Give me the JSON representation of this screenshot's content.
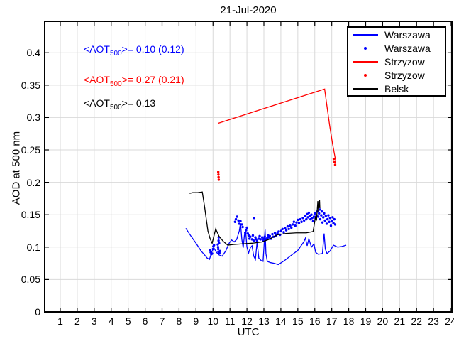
{
  "title": "21-Jul-2020",
  "axes": {
    "xlabel": "UTC",
    "ylabel": "AOD at 500 nm",
    "x_ticks": [
      "1",
      "2",
      "3",
      "4",
      "5",
      "6",
      "7",
      "8",
      "9",
      "10",
      "11",
      "12",
      "13",
      "14",
      "15",
      "16",
      "17",
      "18",
      "19",
      "20",
      "21",
      "22",
      "23",
      "24"
    ],
    "y_ticks": [
      "0",
      "0.05",
      "0.1",
      "0.15",
      "0.2",
      "0.25",
      "0.3",
      "0.35",
      "0.4"
    ]
  },
  "annotations": [
    {
      "pre": "<AOT",
      "sub": "500",
      "post": ">= 0.10 (0.12)",
      "color": "#0000ff"
    },
    {
      "pre": "<AOT",
      "sub": "500",
      "post": ">= 0.27 (0.21)",
      "color": "#ff0000"
    },
    {
      "pre": "<AOT",
      "sub": "500",
      "post": ">= 0.13",
      "color": "#000000"
    }
  ],
  "legend": {
    "items": [
      {
        "label": "Warszawa",
        "type": "line",
        "color": "#0000ff"
      },
      {
        "label": "Warszawa",
        "type": "dot",
        "color": "#0000ff"
      },
      {
        "label": "Strzyzow",
        "type": "line",
        "color": "#ff0000"
      },
      {
        "label": "Strzyzow",
        "type": "dot",
        "color": "#ff0000"
      },
      {
        "label": "Belsk",
        "type": "line",
        "color": "#000000"
      }
    ]
  },
  "chart_data": {
    "type": "line",
    "title": "21-Jul-2020",
    "xlabel": "UTC",
    "ylabel": "AOD at 500 nm",
    "xlim": [
      0.08,
      24.08
    ],
    "ylim": [
      0,
      0.4485
    ],
    "x_tick_values": [
      1,
      2,
      3,
      4,
      5,
      6,
      7,
      8,
      9,
      10,
      11,
      12,
      13,
      14,
      15,
      16,
      17,
      18,
      19,
      20,
      21,
      22,
      23,
      24
    ],
    "y_tick_values": [
      0,
      0.05,
      0.1,
      0.15,
      0.2,
      0.25,
      0.3,
      0.35,
      0.4
    ],
    "grid": true,
    "grid_color": "#d9d9d9",
    "legend_position": "upper-right",
    "series": [
      {
        "name": "Warszawa",
        "style": "line",
        "color": "#0000ff",
        "points": [
          [
            8.4,
            0.129
          ],
          [
            8.7,
            0.117
          ],
          [
            9.0,
            0.106
          ],
          [
            9.3,
            0.094
          ],
          [
            9.5,
            0.088
          ],
          [
            9.66,
            0.083
          ],
          [
            9.79,
            0.081
          ],
          [
            9.95,
            0.094
          ],
          [
            10.05,
            0.099
          ],
          [
            10.2,
            0.092
          ],
          [
            10.35,
            0.088
          ],
          [
            10.54,
            0.086
          ],
          [
            10.75,
            0.094
          ],
          [
            10.95,
            0.106
          ],
          [
            11.1,
            0.111
          ],
          [
            11.25,
            0.108
          ],
          [
            11.4,
            0.112
          ],
          [
            11.55,
            0.125
          ],
          [
            11.62,
            0.137
          ],
          [
            11.7,
            0.112
          ],
          [
            11.78,
            0.099
          ],
          [
            11.85,
            0.118
          ],
          [
            11.92,
            0.125
          ],
          [
            12.0,
            0.1
          ],
          [
            12.1,
            0.091
          ],
          [
            12.2,
            0.099
          ],
          [
            12.3,
            0.102
          ],
          [
            12.4,
            0.086
          ],
          [
            12.5,
            0.081
          ],
          [
            12.6,
            0.108
          ],
          [
            12.7,
            0.083
          ],
          [
            12.85,
            0.079
          ],
          [
            12.95,
            0.078
          ],
          [
            13.02,
            0.106
          ],
          [
            13.07,
            0.127
          ],
          [
            13.12,
            0.09
          ],
          [
            13.2,
            0.078
          ],
          [
            13.4,
            0.076
          ],
          [
            13.6,
            0.075
          ],
          [
            13.85,
            0.073
          ],
          [
            14.2,
            0.079
          ],
          [
            14.6,
            0.087
          ],
          [
            15.0,
            0.095
          ],
          [
            15.35,
            0.108
          ],
          [
            15.45,
            0.114
          ],
          [
            15.55,
            0.102
          ],
          [
            15.65,
            0.113
          ],
          [
            15.8,
            0.1
          ],
          [
            15.95,
            0.105
          ],
          [
            16.05,
            0.092
          ],
          [
            16.2,
            0.089
          ],
          [
            16.45,
            0.09
          ],
          [
            16.55,
            0.121
          ],
          [
            16.62,
            0.097
          ],
          [
            16.72,
            0.09
          ],
          [
            16.9,
            0.094
          ],
          [
            17.1,
            0.103
          ],
          [
            17.35,
            0.1
          ],
          [
            17.6,
            0.101
          ],
          [
            17.85,
            0.103
          ]
        ]
      },
      {
        "name": "Warszawa",
        "style": "scatter",
        "color": "#0000ff",
        "points": [
          [
            9.82,
            0.095
          ],
          [
            9.86,
            0.092
          ],
          [
            9.9,
            0.089
          ],
          [
            9.95,
            0.09
          ],
          [
            10.0,
            0.097
          ],
          [
            10.02,
            0.101
          ],
          [
            10.06,
            0.103
          ],
          [
            10.28,
            0.104
          ],
          [
            10.3,
            0.1
          ],
          [
            10.31,
            0.097
          ],
          [
            10.32,
            0.093
          ],
          [
            10.33,
            0.11
          ],
          [
            10.34,
            0.115
          ],
          [
            10.36,
            0.106
          ],
          [
            10.38,
            0.091
          ],
          [
            10.42,
            0.094
          ],
          [
            11.3,
            0.139
          ],
          [
            11.35,
            0.143
          ],
          [
            11.42,
            0.147
          ],
          [
            11.5,
            0.141
          ],
          [
            11.55,
            0.136
          ],
          [
            11.62,
            0.14
          ],
          [
            11.7,
            0.135
          ],
          [
            11.75,
            0.131
          ],
          [
            11.9,
            0.122
          ],
          [
            11.95,
            0.126
          ],
          [
            12.0,
            0.13
          ],
          [
            12.05,
            0.121
          ],
          [
            12.1,
            0.118
          ],
          [
            12.15,
            0.113
          ],
          [
            12.2,
            0.116
          ],
          [
            12.3,
            0.112
          ],
          [
            12.35,
            0.118
          ],
          [
            12.42,
            0.145
          ],
          [
            12.4,
            0.11
          ],
          [
            12.5,
            0.115
          ],
          [
            12.55,
            0.112
          ],
          [
            12.6,
            0.109
          ],
          [
            12.7,
            0.113
          ],
          [
            12.75,
            0.117
          ],
          [
            12.8,
            0.112
          ],
          [
            12.9,
            0.115
          ],
          [
            12.95,
            0.11
          ],
          [
            13.0,
            0.113
          ],
          [
            13.05,
            0.116
          ],
          [
            13.1,
            0.112
          ],
          [
            13.2,
            0.114
          ],
          [
            13.25,
            0.118
          ],
          [
            13.3,
            0.115
          ],
          [
            13.35,
            0.117
          ],
          [
            13.42,
            0.113
          ],
          [
            13.5,
            0.12
          ],
          [
            13.57,
            0.116
          ],
          [
            13.65,
            0.122
          ],
          [
            13.72,
            0.118
          ],
          [
            13.8,
            0.121
          ],
          [
            13.87,
            0.124
          ],
          [
            13.95,
            0.119
          ],
          [
            14.02,
            0.125
          ],
          [
            14.1,
            0.128
          ],
          [
            14.17,
            0.123
          ],
          [
            14.25,
            0.129
          ],
          [
            14.32,
            0.126
          ],
          [
            14.4,
            0.132
          ],
          [
            14.47,
            0.128
          ],
          [
            14.55,
            0.133
          ],
          [
            14.62,
            0.13
          ],
          [
            14.7,
            0.135
          ],
          [
            14.77,
            0.139
          ],
          [
            14.85,
            0.133
          ],
          [
            14.92,
            0.138
          ],
          [
            15.0,
            0.142
          ],
          [
            15.07,
            0.137
          ],
          [
            15.15,
            0.143
          ],
          [
            15.22,
            0.139
          ],
          [
            15.3,
            0.145
          ],
          [
            15.37,
            0.141
          ],
          [
            15.45,
            0.148
          ],
          [
            15.5,
            0.143
          ],
          [
            15.55,
            0.151
          ],
          [
            15.6,
            0.146
          ],
          [
            15.65,
            0.153
          ],
          [
            15.7,
            0.148
          ],
          [
            15.75,
            0.143
          ],
          [
            15.8,
            0.15
          ],
          [
            15.85,
            0.145
          ],
          [
            15.9,
            0.14
          ],
          [
            15.95,
            0.147
          ],
          [
            16.0,
            0.152
          ],
          [
            16.05,
            0.144
          ],
          [
            16.1,
            0.149
          ],
          [
            16.15,
            0.155
          ],
          [
            16.2,
            0.147
          ],
          [
            16.25,
            0.152
          ],
          [
            16.3,
            0.158
          ],
          [
            16.32,
            0.143
          ],
          [
            16.38,
            0.149
          ],
          [
            16.42,
            0.155
          ],
          [
            16.45,
            0.138
          ],
          [
            16.5,
            0.146
          ],
          [
            16.55,
            0.152
          ],
          [
            16.6,
            0.141
          ],
          [
            16.65,
            0.148
          ],
          [
            16.7,
            0.136
          ],
          [
            16.75,
            0.143
          ],
          [
            16.8,
            0.149
          ],
          [
            16.85,
            0.139
          ],
          [
            16.9,
            0.145
          ],
          [
            16.95,
            0.133
          ],
          [
            17.0,
            0.14
          ],
          [
            17.05,
            0.146
          ],
          [
            17.1,
            0.137
          ],
          [
            17.15,
            0.143
          ],
          [
            17.2,
            0.135
          ]
        ]
      },
      {
        "name": "Strzyzow",
        "style": "line",
        "color": "#ff0000",
        "points": [
          [
            10.29,
            0.291
          ],
          [
            16.58,
            0.344
          ],
          [
            16.72,
            0.317
          ],
          [
            16.88,
            0.287
          ],
          [
            17.05,
            0.259
          ],
          [
            17.24,
            0.232
          ]
        ]
      },
      {
        "name": "Strzyzow",
        "style": "scatter",
        "color": "#ff0000",
        "points": [
          [
            10.31,
            0.216
          ],
          [
            10.32,
            0.212
          ],
          [
            10.33,
            0.208
          ],
          [
            10.34,
            0.204
          ],
          [
            17.12,
            0.236
          ],
          [
            17.16,
            0.231
          ],
          [
            17.2,
            0.227
          ]
        ]
      },
      {
        "name": "Belsk",
        "style": "line",
        "color": "#000000",
        "points": [
          [
            8.62,
            0.183
          ],
          [
            8.8,
            0.184
          ],
          [
            9.1,
            0.184
          ],
          [
            9.37,
            0.185
          ],
          [
            9.5,
            0.163
          ],
          [
            9.7,
            0.125
          ],
          [
            9.83,
            0.113
          ],
          [
            9.95,
            0.106
          ],
          [
            10.16,
            0.128
          ],
          [
            10.35,
            0.117
          ],
          [
            10.6,
            0.109
          ],
          [
            10.87,
            0.103
          ],
          [
            11.2,
            0.104
          ],
          [
            11.7,
            0.105
          ],
          [
            12.3,
            0.106
          ],
          [
            12.9,
            0.108
          ],
          [
            13.3,
            0.112
          ],
          [
            13.8,
            0.119
          ],
          [
            14.3,
            0.121
          ],
          [
            14.9,
            0.122
          ],
          [
            15.5,
            0.122
          ],
          [
            15.9,
            0.124
          ],
          [
            16.05,
            0.148
          ],
          [
            16.1,
            0.141
          ],
          [
            16.18,
            0.171
          ],
          [
            16.22,
            0.155
          ],
          [
            16.28,
            0.173
          ],
          [
            16.3,
            0.16
          ]
        ]
      }
    ]
  }
}
